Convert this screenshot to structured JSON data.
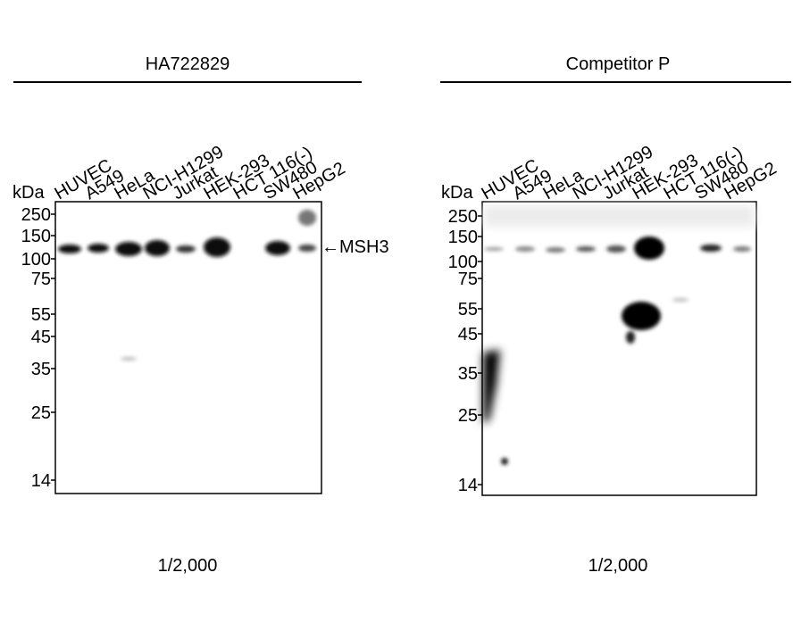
{
  "panels": [
    {
      "title": "HA722829",
      "kda_label": "kDa",
      "lanes": [
        "HUVEC",
        "A549",
        "HeLa",
        "NCI-H1299",
        "Jurkat",
        "HEK-293",
        "HCT 116(-)",
        "SW480",
        "HepG2"
      ],
      "markers": [
        "250",
        "150",
        "100",
        "75",
        "55",
        "45",
        "35",
        "25",
        "14"
      ],
      "target_label": "←MSH3",
      "dilution": "1/2,000"
    },
    {
      "title": "Competitor P",
      "kda_label": "kDa",
      "lanes": [
        "HUVEC",
        "A549",
        "HeLa",
        "NCI-H1299",
        "Jurkat",
        "HEK-293",
        "HCT 116(-)",
        "SW480",
        "HepG2"
      ],
      "markers": [
        "250",
        "150",
        "100",
        "75",
        "55",
        "45",
        "35",
        "25",
        "14"
      ],
      "dilution": "1/2,000"
    }
  ]
}
